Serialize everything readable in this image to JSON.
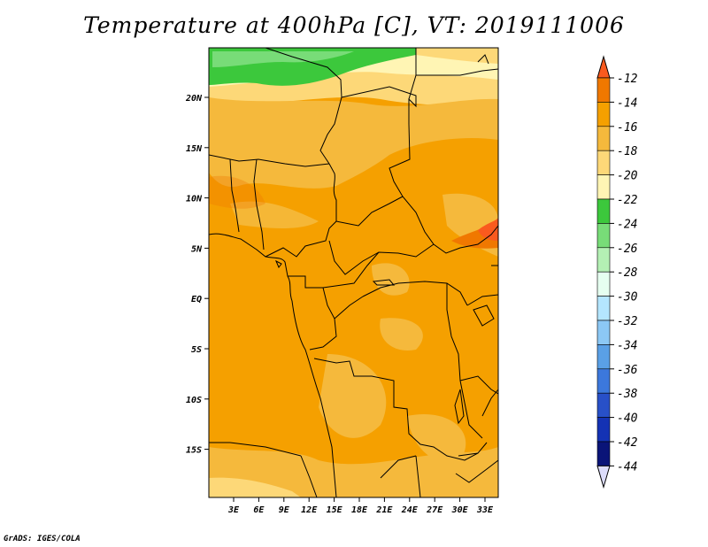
{
  "title": "Temperature at 400hPa [C], VT: 2019111006",
  "credit": "GrADS: IGES/COLA",
  "map": {
    "lat_ticks": [
      "20N",
      "15N",
      "10N",
      "5N",
      "EQ",
      "5S",
      "10S",
      "15S"
    ],
    "lon_ticks": [
      "3E",
      "6E",
      "9E",
      "12E",
      "15E",
      "18E",
      "21E",
      "24E",
      "27E",
      "30E",
      "33E"
    ]
  },
  "colorbar": {
    "labels": [
      "-12",
      "-14",
      "-16",
      "-18",
      "-20",
      "-22",
      "-24",
      "-26",
      "-28",
      "-30",
      "-32",
      "-34",
      "-36",
      "-38",
      "-40",
      "-42",
      "-44"
    ],
    "colors": {
      "gt_-12": "#fa5a1e",
      "-14_-12": "#f07800",
      "-16_-14": "#f5a000",
      "-18_-16": "#f5b93c",
      "-20_-18": "#fdd878",
      "-22_-20": "#fff5b4",
      "-24_-22": "#3cc83c",
      "-26_-24": "#78dc78",
      "-28_-26": "#b4f0b4",
      "-30_-28": "#e6fff0",
      "-32_-30": "#b4e6ff",
      "-34_-32": "#8cc8f5",
      "-36_-34": "#5aa0e6",
      "-38_-36": "#3c78dc",
      "-40_-38": "#2850c8",
      "-42_-40": "#1432b4",
      "-44_-42": "#0a1478",
      "lt_-44": "#dcdcfa"
    }
  }
}
